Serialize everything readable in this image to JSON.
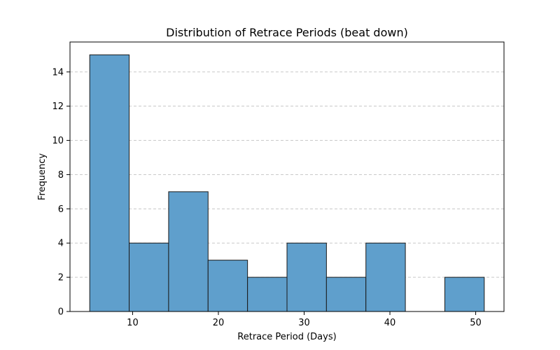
{
  "chart_data": {
    "type": "bar",
    "title": "Distribution of Retrace Periods (beat down)",
    "xlabel": "Retrace Period (Days)",
    "ylabel": "Frequency",
    "bins": [
      {
        "x0": 5.0,
        "x1": 9.6,
        "count": 15
      },
      {
        "x0": 9.6,
        "x1": 14.2,
        "count": 4
      },
      {
        "x0": 14.2,
        "x1": 18.8,
        "count": 7
      },
      {
        "x0": 18.8,
        "x1": 23.4,
        "count": 3
      },
      {
        "x0": 23.4,
        "x1": 28.0,
        "count": 2
      },
      {
        "x0": 28.0,
        "x1": 32.6,
        "count": 4
      },
      {
        "x0": 32.6,
        "x1": 37.2,
        "count": 2
      },
      {
        "x0": 37.2,
        "x1": 41.8,
        "count": 4
      },
      {
        "x0": 41.8,
        "x1": 46.4,
        "count": 0
      },
      {
        "x0": 46.4,
        "x1": 51.0,
        "count": 2
      }
    ],
    "xlim": [
      2.7,
      53.3
    ],
    "ylim": [
      0,
      15.75
    ],
    "xticks": [
      10,
      20,
      30,
      40,
      50
    ],
    "yticks": [
      0,
      2,
      4,
      6,
      8,
      10,
      12,
      14
    ],
    "grid": {
      "axis": "y",
      "style": "dashed"
    },
    "bar_color": "#5f9fcc",
    "bar_edge_color": "#1a1a1a",
    "grid_color": "#c8c8c8"
  }
}
